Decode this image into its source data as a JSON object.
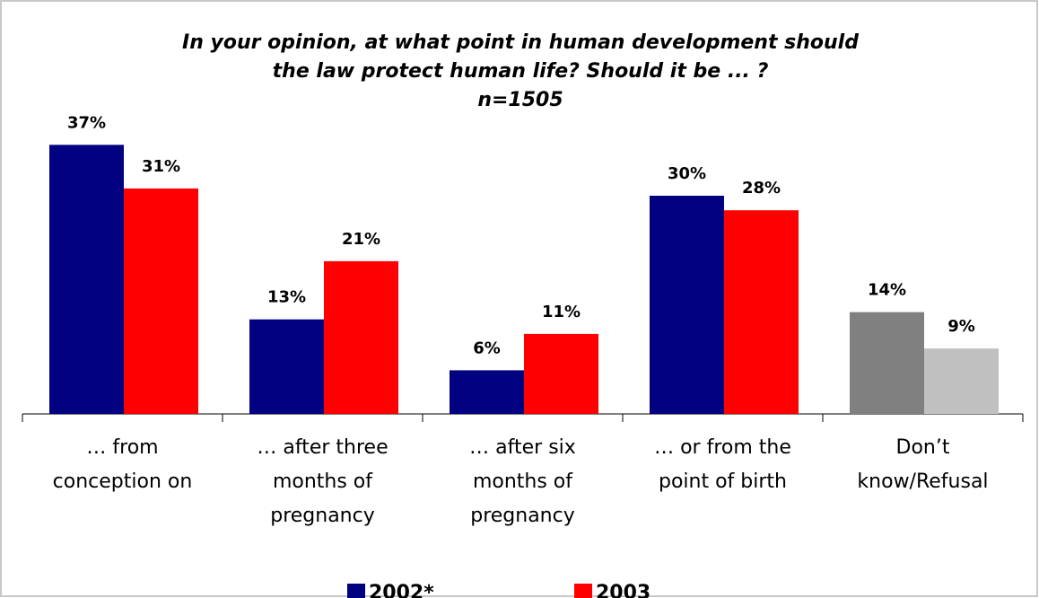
{
  "chart_data": {
    "type": "bar",
    "title": [
      "In your opinion, at what point in human development should",
      "the law protect human life? Should it be ... ?"
    ],
    "subtitle": "n=1505",
    "categories": [
      "… from conception on",
      "… after three months of pregnancy",
      "… after six months of pregnancy",
      "… or from the point of birth",
      "Don’t know/Refusal"
    ],
    "series": [
      {
        "name": "2002*",
        "color": "#000080",
        "colors": [
          "#000080",
          "#000080",
          "#000080",
          "#000080",
          "#808080"
        ],
        "values": [
          37,
          13,
          6,
          30,
          14
        ],
        "value_labels": [
          "37%",
          "13%",
          "6%",
          "30%",
          "14%"
        ]
      },
      {
        "name": "2003",
        "color": "#ff0000",
        "colors": [
          "#ff0000",
          "#ff0000",
          "#ff0000",
          "#ff0000",
          "#c0c0c0"
        ],
        "values": [
          31,
          21,
          11,
          28,
          9
        ],
        "value_labels": [
          "31%",
          "21%",
          "11%",
          "28%",
          "9%"
        ]
      }
    ],
    "ylim": [
      0,
      40
    ]
  }
}
